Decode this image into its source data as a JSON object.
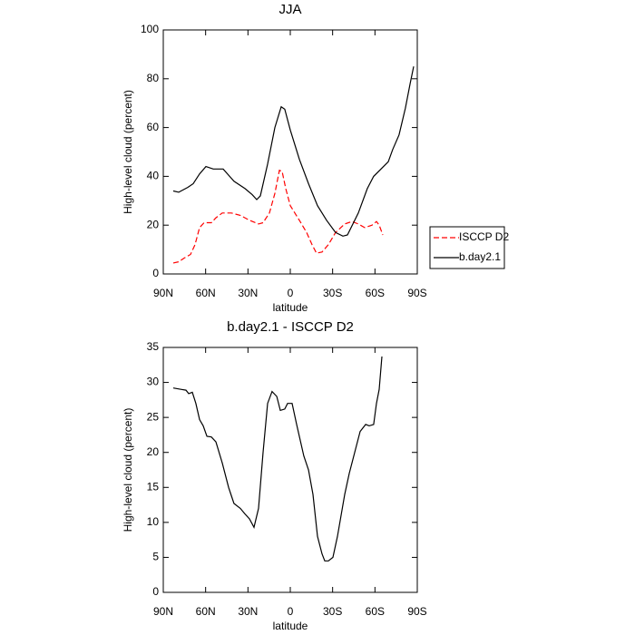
{
  "chart_data": [
    {
      "type": "line",
      "title": "JJA",
      "xlabel": "latitude",
      "ylabel": "High-level cloud (percent)",
      "xlim": [
        90,
        -90
      ],
      "xticks": [
        {
          "value": 90,
          "label": "90N"
        },
        {
          "value": 60,
          "label": "60N"
        },
        {
          "value": 30,
          "label": "30N"
        },
        0,
        {
          "value": -30,
          "label": "30S"
        },
        {
          "value": -60,
          "label": "60S"
        },
        {
          "value": -90,
          "label": "90S"
        }
      ],
      "ylim": [
        0,
        100
      ],
      "yticks": [
        0,
        20,
        40,
        60,
        80,
        100
      ],
      "legend": "right",
      "series": [
        {
          "name": "ISCCP D2",
          "color": "#ff0000",
          "line_style": "dashed",
          "x": [
            82.9,
            79.1,
            75.2,
            70.7,
            67.5,
            64.3,
            61.1,
            55.9,
            52.7,
            48.2,
            41.8,
            35.4,
            28.9,
            22.5,
            19.3,
            14.8,
            10.9,
            7.7,
            5.8,
            3.2,
            0,
            -6.4,
            -11.6,
            -15.4,
            -18.6,
            -22.5,
            -27,
            -32.1,
            -38.6,
            -43.7,
            -48.2,
            -52.7,
            -57.9,
            -61.1,
            -63,
            -65.6
          ],
          "values": [
            4.5,
            5,
            6.5,
            8,
            12,
            19,
            21,
            21,
            23,
            25,
            25,
            24,
            22,
            20.5,
            21,
            25,
            33,
            42.5,
            42,
            35,
            28,
            22,
            17,
            12,
            8.5,
            9,
            12,
            17,
            20.5,
            21.5,
            20.5,
            19,
            20,
            21.5,
            20,
            16
          ]
        },
        {
          "name": "b.day2.1",
          "color": "#000000",
          "line_style": "solid",
          "x": [
            82.9,
            79.1,
            72.6,
            68.8,
            64.3,
            59.8,
            54.6,
            47.6,
            39.9,
            32.1,
            27,
            23.8,
            21.2,
            16.1,
            10.9,
            6.4,
            3.9,
            0,
            -6.4,
            -12.9,
            -19.3,
            -25.7,
            -32.1,
            -37.3,
            -40.5,
            -48.2,
            -54.6,
            -59.1,
            -64.3,
            -69.4,
            -72.6,
            -77.1,
            -81.6,
            -84.9,
            -87.4
          ],
          "values": [
            34,
            33.5,
            35.5,
            37,
            41,
            44,
            43,
            43,
            38,
            35,
            32.5,
            30.5,
            32,
            45,
            60,
            68.5,
            67.5,
            59,
            47,
            37,
            28,
            22,
            17,
            15.5,
            16,
            25,
            35,
            40,
            43,
            46,
            51,
            57,
            68,
            78,
            85
          ]
        }
      ]
    },
    {
      "type": "line",
      "title": "b.day2.1 - ISCCP D2",
      "xlabel": "latitude",
      "ylabel": "High-level cloud (percent)",
      "xlim": [
        90,
        -90
      ],
      "xticks": [
        {
          "value": 90,
          "label": "90N"
        },
        {
          "value": 60,
          "label": "60N"
        },
        {
          "value": 30,
          "label": "30N"
        },
        0,
        {
          "value": -30,
          "label": "30S"
        },
        {
          "value": -60,
          "label": "60S"
        },
        {
          "value": -90,
          "label": "90S"
        }
      ],
      "ylim": [
        0,
        35
      ],
      "yticks": [
        0,
        5,
        10,
        15,
        20,
        25,
        30,
        35
      ],
      "series": [
        {
          "color": "#000000",
          "line_style": "solid",
          "x": [
            82.9,
            77.1,
            73.9,
            72,
            69.4,
            66.9,
            64.3,
            61.7,
            59.1,
            55.9,
            52.7,
            48.2,
            43.7,
            39.9,
            35.4,
            32.1,
            28.9,
            25.7,
            22.5,
            19.3,
            16.1,
            12.9,
            9.6,
            7.1,
            3.9,
            1.9,
            -1.3,
            -4.5,
            -9.6,
            -12.9,
            -16.1,
            -19.3,
            -22.5,
            -24.4,
            -27,
            -30.2,
            -33.4,
            -38.6,
            -41.8,
            -46.3,
            -49.5,
            -53.4,
            -55.9,
            -59.1,
            -61.1,
            -63,
            -64.9
          ],
          "values": [
            29.2,
            29,
            28.9,
            28.4,
            28.6,
            27,
            24.7,
            23.8,
            22.3,
            22.2,
            21.5,
            18.5,
            15,
            12.7,
            12,
            11.2,
            10.5,
            9.3,
            12,
            20,
            27,
            28.7,
            28,
            26,
            26.2,
            27,
            27,
            24,
            19.5,
            17.5,
            14,
            8,
            5.5,
            4.5,
            4.5,
            5,
            8,
            14,
            17,
            20.5,
            23,
            24,
            23.8,
            24,
            27,
            29,
            33.7
          ]
        }
      ]
    }
  ]
}
